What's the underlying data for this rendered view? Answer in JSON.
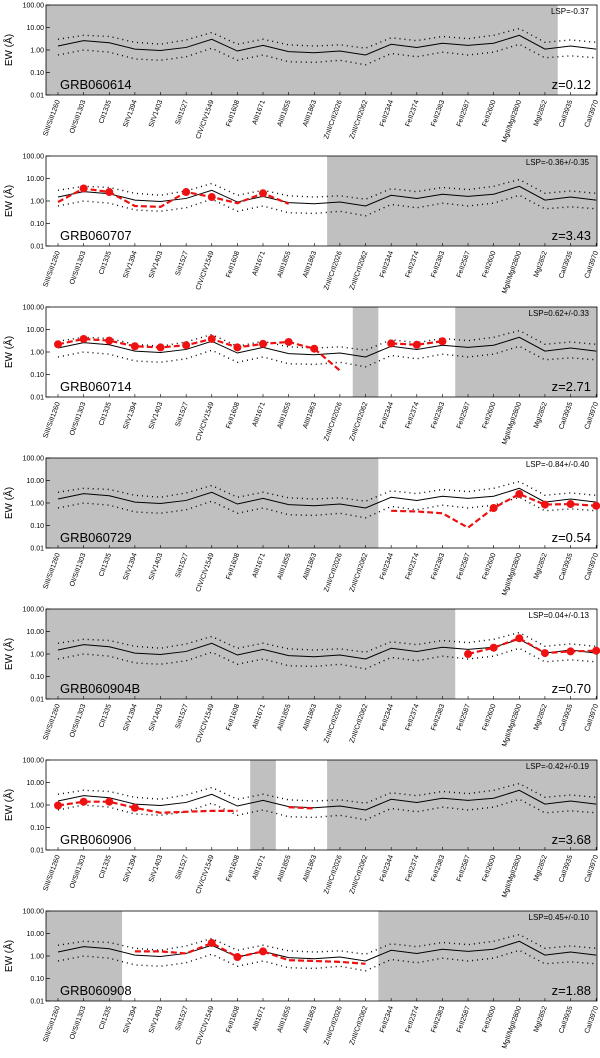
{
  "chart_data": [
    {
      "type": "line",
      "grb": "GRB060614",
      "z_text": "z=0.12",
      "lsp_text": "LSP=-0.37",
      "shaded": [
        [
          0,
          19.5
        ]
      ],
      "series": []
    },
    {
      "type": "line",
      "grb": "GRB060707",
      "z_text": "z=3.43",
      "lsp_text": "LSP=-0.36+/-0.35",
      "shaded": [
        [
          10.5,
          23
        ]
      ],
      "series": [
        {
          "x": [
            0,
            1,
            2,
            3,
            4,
            5,
            6,
            7,
            8,
            9
          ],
          "y": [
            0.9,
            3.6,
            2.5,
            0.6,
            0.55,
            2.5,
            1.5,
            0.8,
            2.2,
            0.75
          ],
          "markers": [
            1,
            2,
            5,
            6,
            8
          ]
        }
      ]
    },
    {
      "type": "line",
      "grb": "GRB060714",
      "z_text": "z=2.71",
      "lsp_text": "LSP=0.62+/-0.33",
      "shaded": [
        [
          11.5,
          12.5
        ],
        [
          15.5,
          23
        ]
      ],
      "series": [
        {
          "x": [
            0,
            1,
            2,
            3,
            4,
            5,
            6,
            7,
            8,
            9,
            10,
            11
          ],
          "y": [
            2.2,
            3.8,
            3.2,
            1.8,
            1.6,
            2.0,
            3.8,
            1.6,
            2.3,
            2.8,
            1.4,
            0.15
          ],
          "markers": [
            0,
            1,
            2,
            3,
            4,
            5,
            6,
            7,
            8,
            9,
            10
          ]
        },
        {
          "x": [
            13,
            14,
            15
          ],
          "y": [
            2.4,
            2.1,
            3.0
          ],
          "markers": [
            13,
            14,
            15
          ]
        }
      ]
    },
    {
      "type": "line",
      "grb": "GRB060729",
      "z_text": "z=0.54",
      "lsp_text": "LSP=-0.84+/-0.40",
      "shaded": [
        [
          0,
          12.5
        ]
      ],
      "series": [
        {
          "x": [
            13,
            14,
            15,
            16,
            17,
            18,
            19,
            20,
            21,
            22
          ],
          "y": [
            0.45,
            0.42,
            0.35,
            0.08,
            0.6,
            2.5,
            0.85,
            0.9,
            0.75,
            0.75
          ],
          "markers": [
            17,
            18,
            19,
            20,
            21
          ]
        }
      ]
    },
    {
      "type": "line",
      "grb": "GRB060904B",
      "z_text": "z=0.70",
      "lsp_text": "LSP=0.04+/-0.13",
      "shaded": [
        [
          0,
          15.5
        ]
      ],
      "series": [
        {
          "x": [
            16,
            17,
            18,
            19,
            20,
            21,
            22
          ],
          "y": [
            1.0,
            1.9,
            5.0,
            1.1,
            1.3,
            1.4,
            1.2
          ],
          "markers": [
            16,
            17,
            18,
            19,
            20,
            21,
            22
          ]
        }
      ]
    },
    {
      "type": "line",
      "grb": "GRB060906",
      "z_text": "z=3.68",
      "lsp_text": "LSP=-0.42+/-0.19",
      "shaded": [
        [
          7.5,
          8.5
        ],
        [
          10.5,
          23
        ]
      ],
      "series": [
        {
          "x": [
            0,
            1,
            2,
            3,
            4,
            5,
            6,
            7
          ],
          "y": [
            0.95,
            1.4,
            1.4,
            0.75,
            0.45,
            0.5,
            0.55,
            0.55
          ],
          "markers": [
            0,
            1,
            2,
            3
          ]
        },
        {
          "x": [
            9,
            10
          ],
          "y": [
            0.8,
            0.7
          ],
          "markers": []
        }
      ]
    },
    {
      "type": "line",
      "grb": "GRB060908",
      "z_text": "z=1.88",
      "lsp_text": "LSP=0.45+/-0.10",
      "shaded": [
        [
          0,
          2.5
        ],
        [
          12.5,
          23
        ]
      ],
      "series": [
        {
          "x": [
            3,
            4,
            5,
            6,
            7,
            8,
            9,
            10,
            11,
            12
          ],
          "y": [
            1.6,
            1.6,
            1.3,
            3.8,
            0.9,
            1.6,
            0.65,
            0.6,
            0.55,
            0.45
          ],
          "markers": [
            6,
            7,
            8
          ]
        }
      ]
    }
  ],
  "shared": {
    "categories": [
      "SiII/SiII1260",
      "OI/SiII1303",
      "CII1335",
      "SiIV1394",
      "SiIV1403",
      "SiII1527",
      "CIV/CIV1549",
      "FeII1608",
      "AlII1671",
      "AlIII1855",
      "AlIII1863",
      "ZnII/CrII2026",
      "ZnII/CrII2062",
      "FeII2344",
      "FeII2374",
      "FeII2383",
      "FeII2587",
      "FeII2600",
      "MgII/MgII2800",
      "MgI2852",
      "CaII3935",
      "CaII3970"
    ],
    "ylabel": "EW (Å)",
    "yticks": [
      "100.00",
      "10.00",
      "1.00",
      "0.10",
      "0.01"
    ],
    "ylim": [
      0.01,
      100
    ],
    "yscale": "log",
    "mean": [
      1.5,
      2.6,
      2.1,
      1.1,
      0.95,
      1.3,
      3.0,
      0.9,
      1.6,
      0.85,
      0.75,
      0.9,
      0.6,
      1.8,
      1.3,
      2.0,
      1.6,
      2.0,
      4.5,
      1.1,
      1.5,
      1.1
    ],
    "upper": [
      3.0,
      4.5,
      4.0,
      2.2,
      1.8,
      2.8,
      6.0,
      1.8,
      3.0,
      1.7,
      1.5,
      1.7,
      1.2,
      3.5,
      2.6,
      4.0,
      3.2,
      4.5,
      9.0,
      2.2,
      2.8,
      2.2
    ],
    "lower": [
      0.6,
      1.0,
      0.8,
      0.4,
      0.35,
      0.5,
      1.2,
      0.35,
      0.6,
      0.3,
      0.28,
      0.35,
      0.22,
      0.7,
      0.5,
      0.8,
      0.6,
      0.8,
      1.8,
      0.45,
      0.55,
      0.45
    ],
    "colors": {
      "shade": "#c0c0c0",
      "red": "#ee1111",
      "black": "#000000"
    }
  }
}
